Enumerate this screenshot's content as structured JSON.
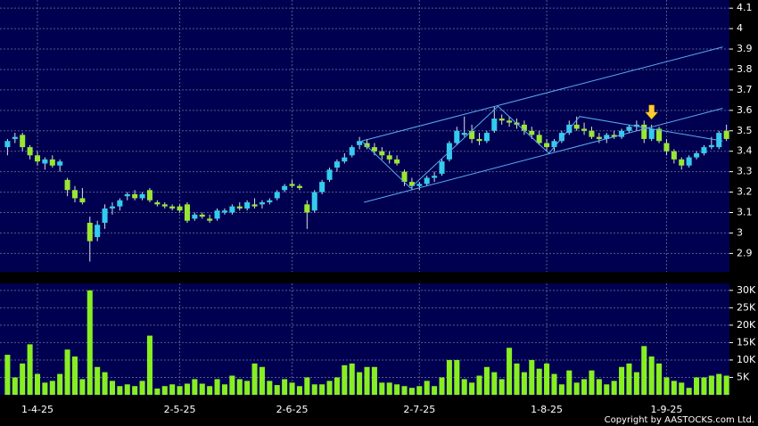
{
  "chart_data": {
    "type": "candlestick",
    "candles": [
      [
        3.42,
        3.46,
        3.38,
        3.45
      ],
      [
        3.46,
        3.49,
        3.44,
        3.47
      ],
      [
        3.48,
        3.49,
        3.4,
        3.42
      ],
      [
        3.42,
        3.43,
        3.36,
        3.38
      ],
      [
        3.38,
        3.4,
        3.33,
        3.35
      ],
      [
        3.34,
        3.37,
        3.31,
        3.36
      ],
      [
        3.36,
        3.38,
        3.32,
        3.33
      ],
      [
        3.33,
        3.36,
        3.3,
        3.35
      ],
      [
        3.26,
        3.27,
        3.18,
        3.21
      ],
      [
        3.21,
        3.23,
        3.15,
        3.17
      ],
      [
        3.17,
        3.22,
        3.14,
        3.15
      ],
      [
        3.05,
        3.08,
        2.86,
        2.96
      ],
      [
        2.98,
        3.06,
        2.96,
        3.04
      ],
      [
        3.05,
        3.14,
        3.02,
        3.12
      ],
      [
        3.12,
        3.15,
        3.09,
        3.13
      ],
      [
        3.13,
        3.17,
        3.11,
        3.16
      ],
      [
        3.18,
        3.2,
        3.16,
        3.19
      ],
      [
        3.19,
        3.21,
        3.16,
        3.17
      ],
      [
        3.17,
        3.2,
        3.16,
        3.19
      ],
      [
        3.21,
        3.22,
        3.15,
        3.16
      ],
      [
        3.15,
        3.16,
        3.13,
        3.14
      ],
      [
        3.14,
        3.15,
        3.12,
        3.13
      ],
      [
        3.13,
        3.14,
        3.11,
        3.12
      ],
      [
        3.13,
        3.14,
        3.1,
        3.11
      ],
      [
        3.14,
        3.15,
        3.05,
        3.06
      ],
      [
        3.07,
        3.1,
        3.06,
        3.09
      ],
      [
        3.09,
        3.1,
        3.07,
        3.08
      ],
      [
        3.07,
        3.09,
        3.05,
        3.06
      ],
      [
        3.07,
        3.12,
        3.06,
        3.11
      ],
      [
        3.1,
        3.12,
        3.09,
        3.11
      ],
      [
        3.1,
        3.14,
        3.09,
        3.13
      ],
      [
        3.13,
        3.15,
        3.11,
        3.12
      ],
      [
        3.12,
        3.16,
        3.11,
        3.15
      ],
      [
        3.14,
        3.17,
        3.12,
        3.13
      ],
      [
        3.14,
        3.16,
        3.12,
        3.15
      ],
      [
        3.15,
        3.17,
        3.14,
        3.16
      ],
      [
        3.17,
        3.21,
        3.16,
        3.2
      ],
      [
        3.21,
        3.24,
        3.2,
        3.23
      ],
      [
        3.24,
        3.26,
        3.22,
        3.23
      ],
      [
        3.23,
        3.24,
        3.21,
        3.22
      ],
      [
        3.14,
        3.16,
        3.02,
        3.1
      ],
      [
        3.11,
        3.21,
        3.1,
        3.2
      ],
      [
        3.2,
        3.26,
        3.19,
        3.25
      ],
      [
        3.26,
        3.32,
        3.25,
        3.31
      ],
      [
        3.32,
        3.36,
        3.3,
        3.35
      ],
      [
        3.35,
        3.39,
        3.34,
        3.37
      ],
      [
        3.38,
        3.43,
        3.37,
        3.42
      ],
      [
        3.43,
        3.47,
        3.41,
        3.45
      ],
      [
        3.44,
        3.46,
        3.41,
        3.42
      ],
      [
        3.42,
        3.44,
        3.38,
        3.4
      ],
      [
        3.4,
        3.42,
        3.36,
        3.38
      ],
      [
        3.38,
        3.4,
        3.34,
        3.36
      ],
      [
        3.36,
        3.38,
        3.33,
        3.34
      ],
      [
        3.3,
        3.31,
        3.23,
        3.25
      ],
      [
        3.25,
        3.27,
        3.21,
        3.23
      ],
      [
        3.23,
        3.25,
        3.21,
        3.24
      ],
      [
        3.24,
        3.28,
        3.23,
        3.27
      ],
      [
        3.27,
        3.3,
        3.25,
        3.28
      ],
      [
        3.29,
        3.36,
        3.28,
        3.35
      ],
      [
        3.36,
        3.45,
        3.35,
        3.44
      ],
      [
        3.44,
        3.52,
        3.43,
        3.5
      ],
      [
        3.48,
        3.57,
        3.47,
        3.49
      ],
      [
        3.5,
        3.53,
        3.44,
        3.46
      ],
      [
        3.46,
        3.49,
        3.43,
        3.45
      ],
      [
        3.45,
        3.5,
        3.44,
        3.49
      ],
      [
        3.5,
        3.62,
        3.49,
        3.56
      ],
      [
        3.56,
        3.58,
        3.53,
        3.55
      ],
      [
        3.55,
        3.57,
        3.52,
        3.54
      ],
      [
        3.54,
        3.56,
        3.51,
        3.53
      ],
      [
        3.53,
        3.55,
        3.48,
        3.5
      ],
      [
        3.5,
        3.52,
        3.46,
        3.48
      ],
      [
        3.48,
        3.5,
        3.43,
        3.44
      ],
      [
        3.44,
        3.46,
        3.4,
        3.42
      ],
      [
        3.42,
        3.46,
        3.4,
        3.45
      ],
      [
        3.45,
        3.5,
        3.44,
        3.49
      ],
      [
        3.49,
        3.55,
        3.48,
        3.53
      ],
      [
        3.53,
        3.57,
        3.5,
        3.51
      ],
      [
        3.51,
        3.54,
        3.48,
        3.5
      ],
      [
        3.5,
        3.52,
        3.46,
        3.47
      ],
      [
        3.47,
        3.49,
        3.44,
        3.46
      ],
      [
        3.46,
        3.49,
        3.44,
        3.48
      ],
      [
        3.48,
        3.5,
        3.46,
        3.47
      ],
      [
        3.47,
        3.51,
        3.46,
        3.5
      ],
      [
        3.5,
        3.53,
        3.49,
        3.52
      ],
      [
        3.52,
        3.55,
        3.5,
        3.53
      ],
      [
        3.53,
        3.55,
        3.44,
        3.46
      ],
      [
        3.46,
        3.53,
        3.45,
        3.51
      ],
      [
        3.51,
        3.52,
        3.44,
        3.45
      ],
      [
        3.44,
        3.46,
        3.38,
        3.4
      ],
      [
        3.4,
        3.41,
        3.34,
        3.36
      ],
      [
        3.36,
        3.37,
        3.31,
        3.33
      ],
      [
        3.33,
        3.38,
        3.32,
        3.37
      ],
      [
        3.37,
        3.4,
        3.36,
        3.39
      ],
      [
        3.39,
        3.43,
        3.38,
        3.42
      ],
      [
        3.42,
        3.47,
        3.41,
        3.43
      ],
      [
        3.42,
        3.5,
        3.41,
        3.49
      ],
      [
        3.5,
        3.53,
        3.45,
        3.46
      ]
    ],
    "volume": [
      11500,
      5000,
      9000,
      14500,
      6000,
      3500,
      4000,
      6000,
      13000,
      11000,
      4500,
      30000,
      8000,
      6500,
      4000,
      2500,
      3000,
      2500,
      4000,
      17000,
      1800,
      2500,
      3000,
      2500,
      3200,
      4500,
      3200,
      2500,
      4500,
      3000,
      5500,
      4500,
      4000,
      9000,
      8000,
      4000,
      2800,
      4500,
      3500,
      2500,
      5000,
      3000,
      3000,
      4000,
      5000,
      8500,
      9000,
      6500,
      8000,
      8000,
      3500,
      3500,
      3000,
      2500,
      2000,
      2500,
      4000,
      2500,
      5000,
      10000,
      10000,
      4500,
      3500,
      5500,
      8000,
      6500,
      4500,
      13500,
      9000,
      6500,
      10000,
      7500,
      9000,
      6000,
      3000,
      7000,
      3500,
      4500,
      7000,
      4500,
      3000,
      4000,
      8000,
      9000,
      6500,
      14000,
      11000,
      9000,
      5000,
      4000,
      3500,
      2000,
      5000,
      5000,
      5500,
      6000,
      5500
    ],
    "up_color": "#33ccee",
    "down_color": "#99e633",
    "volume_color": "#88ee22",
    "line_color": "#5aaaf0",
    "xlim": [
      -1,
      96.4
    ],
    "xticks": [
      {
        "value": 4,
        "label": "1-4-25"
      },
      {
        "value": 23,
        "label": "2-5-25"
      },
      {
        "value": 38,
        "label": "2-6-25"
      },
      {
        "value": 55,
        "label": "2-7-25"
      },
      {
        "value": 72,
        "label": "1-8-25"
      },
      {
        "value": 88,
        "label": "1-9-25"
      }
    ],
    "ylim": [
      2.81,
      4.14
    ],
    "yticks": [
      2.9,
      3,
      3.1,
      3.2,
      3.3,
      3.4,
      3.5,
      3.6,
      3.7,
      3.8,
      3.9,
      4,
      4.1
    ],
    "y2lim": [
      0,
      32000
    ],
    "y2ticks": [
      {
        "value": 5000,
        "label": "5K"
      },
      {
        "value": 10000,
        "label": "10K"
      },
      {
        "value": 15000,
        "label": "15K"
      },
      {
        "value": 20000,
        "label": "20K"
      },
      {
        "value": 25000,
        "label": "25K"
      },
      {
        "value": 30000,
        "label": "30K"
      }
    ],
    "trendlines": [
      [
        [
          47.6,
          3.15
        ],
        [
          95.5,
          3.61
        ]
      ],
      [
        [
          47.3,
          3.45
        ],
        [
          95.5,
          3.91
        ]
      ],
      [
        [
          47.3,
          3.45
        ],
        [
          53.8,
          3.22
        ],
        [
          65.5,
          3.62
        ],
        [
          72.3,
          3.39
        ],
        [
          76.4,
          3.57
        ],
        [
          95.5,
          3.45
        ]
      ]
    ],
    "marker_index": 86,
    "copyright": "Copyright by AASTOCKS.com Ltd.",
    "grid": true
  }
}
